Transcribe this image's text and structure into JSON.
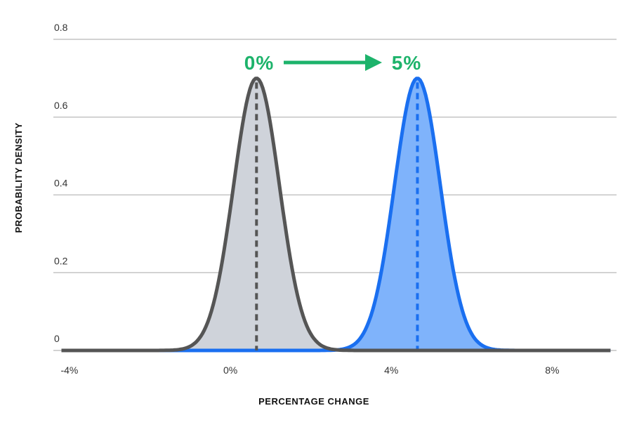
{
  "colors": {
    "baseline_line": "#555555",
    "baseline_fill": "#cfd3da",
    "shifted_line": "#1a6ff0",
    "shifted_fill": "#7fb3fb",
    "overlap_fill": "#8ba8d3",
    "annotation": "#1db36b",
    "grid": "#c4c4c4"
  },
  "annotation": {
    "from_label": "0%",
    "to_label": "5%",
    "arrow_icon": "arrow-right-icon"
  },
  "chart_data": {
    "type": "area",
    "xlabel": "PERCENTAGE CHANGE",
    "ylabel": "PROBABILITY DENSITY",
    "xlim": [
      -4.4,
      9.6
    ],
    "ylim": [
      0,
      0.8
    ],
    "grid": true,
    "x_ticks": [
      {
        "value": -4,
        "label": "-4%"
      },
      {
        "value": 0,
        "label": "0%"
      },
      {
        "value": 4,
        "label": "4%"
      },
      {
        "value": 8,
        "label": "8%"
      }
    ],
    "y_ticks": [
      {
        "value": 0,
        "label": "0"
      },
      {
        "value": 0.2,
        "label": "0.2"
      },
      {
        "value": 0.4,
        "label": "0.4"
      },
      {
        "value": 0.6,
        "label": "0.6"
      },
      {
        "value": 0.8,
        "label": "0.8"
      }
    ],
    "series": [
      {
        "key": "baseline",
        "mean": 0.65,
        "sd": 0.57,
        "peak": 0.7
      },
      {
        "key": "shifted",
        "mean": 4.65,
        "sd": 0.57,
        "peak": 0.7
      }
    ]
  }
}
